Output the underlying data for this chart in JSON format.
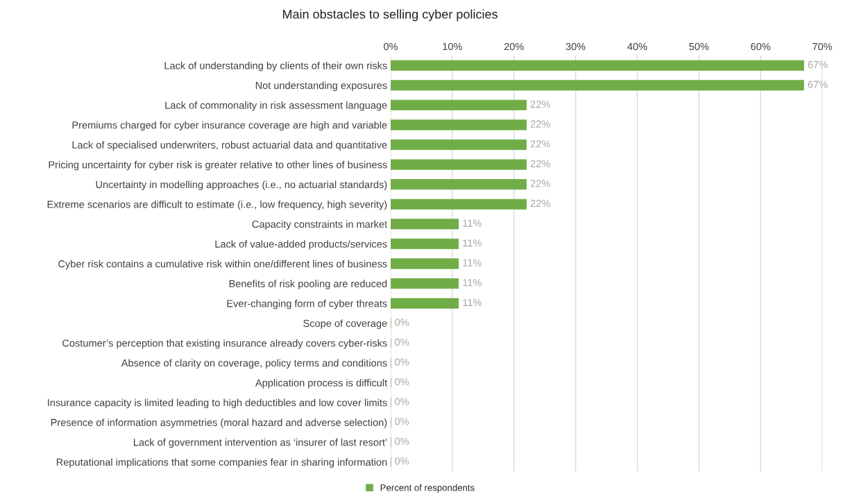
{
  "chart_data": {
    "type": "bar",
    "orientation": "horizontal",
    "title": "Main obstacles to selling cyber policies",
    "categories": [
      "Lack of understanding by clients of their own risks",
      "Not understanding exposures",
      "Lack of commonality in risk assessment language",
      "Premiums charged for cyber insurance coverage are high and variable",
      "Lack of specialised underwriters, robust actuarial data and quantitative",
      "Pricing uncertainty for cyber risk is greater relative to other lines of business",
      "Uncertainty in modelling approaches (i.e., no actuarial standards)",
      "Extreme scenarios are difficult to estimate (i.e., low frequency, high severity)",
      "Capacity constraints in market",
      "Lack of value-added products/services",
      "Cyber risk contains a cumulative risk within one/different lines of business",
      "Benefits of risk pooling are reduced",
      "Ever-changing form of cyber threats",
      "Scope of coverage",
      "Costumer’s perception that existing insurance already covers cyber-risks",
      "Absence of clarity on coverage, policy terms and conditions",
      "Application process is difficult",
      "Insurance capacity is limited leading to high deductibles and low cover limits",
      "Presence of information asymmetries (moral hazard and adverse selection)",
      "Lack of government intervention as ‘insurer of last resort’",
      "Reputational implications that some companies fear in sharing information"
    ],
    "series": [
      {
        "name": "Percent of respondents",
        "color": "#70ad47",
        "values": [
          67,
          67,
          22,
          22,
          22,
          22,
          22,
          22,
          11,
          11,
          11,
          11,
          11,
          0,
          0,
          0,
          0,
          0,
          0,
          0,
          0
        ],
        "value_labels": [
          "67%",
          "67%",
          "22%",
          "22%",
          "22%",
          "22%",
          "22%",
          "22%",
          "11%",
          "11%",
          "11%",
          "11%",
          "11%",
          "0%",
          "0%",
          "0%",
          "0%",
          "0%",
          "0%",
          "0%",
          "0%"
        ]
      }
    ],
    "xlim": [
      0,
      70
    ],
    "xticks": [
      {
        "value": 0,
        "label": "0%"
      },
      {
        "value": 10,
        "label": "10%"
      },
      {
        "value": 20,
        "label": "20%"
      },
      {
        "value": 30,
        "label": "30%"
      },
      {
        "value": 40,
        "label": "40%"
      },
      {
        "value": 50,
        "label": "50%"
      },
      {
        "value": 60,
        "label": "60%"
      },
      {
        "value": 70,
        "label": "70%"
      }
    ],
    "grid": "x",
    "legend": "bottom"
  }
}
